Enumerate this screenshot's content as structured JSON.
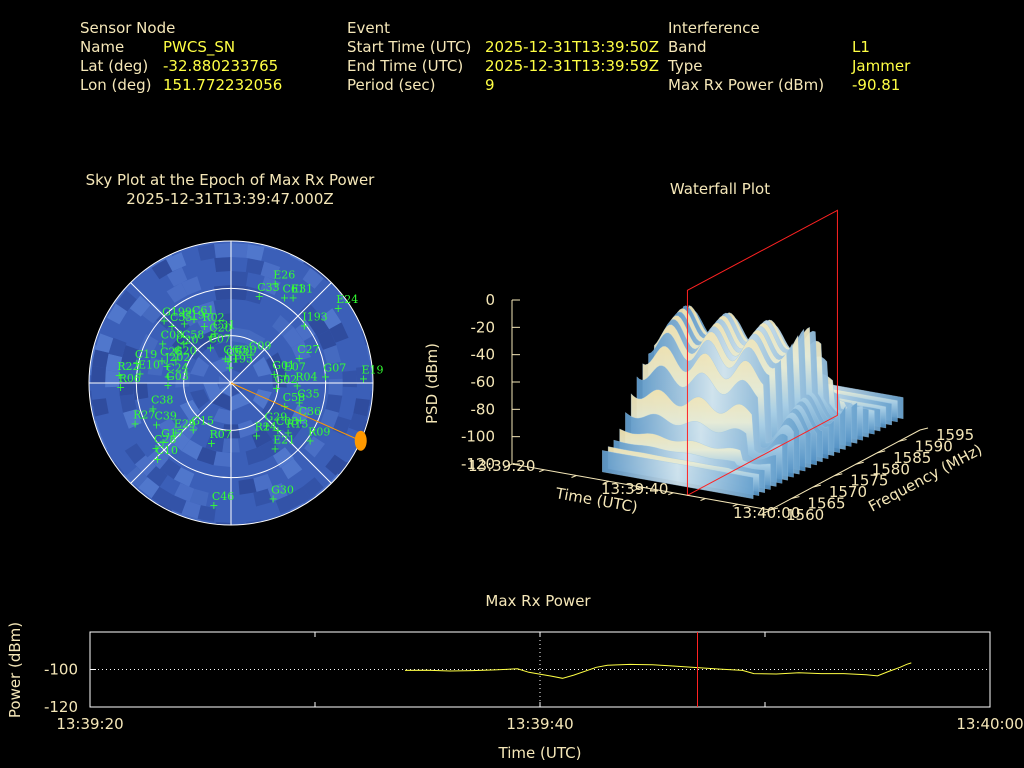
{
  "header": {
    "sensor": {
      "heading": "Sensor Node",
      "rows": [
        {
          "label": "Name",
          "value": "PWCS_SN"
        },
        {
          "label": "Lat (deg)",
          "value": "-32.880233765"
        },
        {
          "label": "Lon (deg)",
          "value": "151.772232056"
        }
      ]
    },
    "event": {
      "heading": "Event",
      "rows": [
        {
          "label": "Start Time (UTC)",
          "value": "2025-12-31T13:39:50Z"
        },
        {
          "label": "End Time (UTC)",
          "value": "2025-12-31T13:39:59Z"
        },
        {
          "label": "Period (sec)",
          "value": "9"
        }
      ]
    },
    "interference": {
      "heading": "Interference",
      "rows": [
        {
          "label": "Band",
          "value": "L1"
        },
        {
          "label": "Type",
          "value": "Jammer"
        },
        {
          "label": "Max Rx Power (dBm)",
          "value": "-90.81"
        }
      ]
    }
  },
  "colors": {
    "label": "#f5e7b8",
    "value": "#ffff44",
    "sat": "#33ff33",
    "jammer": "#ff9900",
    "marker": "#ff2222",
    "trace": "#ffff44",
    "sky": "#3b5fb8"
  },
  "chart_data": [
    {
      "type": "scatter",
      "subtype": "polar-skyplot",
      "title": "Sky Plot at the Epoch of Max Rx Power",
      "subtitle": "2025-12-31T13:39:47.000Z",
      "jammer_direction": {
        "azimuth_deg": 114,
        "elevation_deg": 0
      },
      "satellites": [
        {
          "id": "I195",
          "az": 355,
          "el": 80
        },
        {
          "id": "C30",
          "az": 12,
          "el": 74
        },
        {
          "id": "C09",
          "az": 35,
          "el": 68
        },
        {
          "id": "C53",
          "az": 352,
          "el": 76
        },
        {
          "id": "C60",
          "az": 347,
          "el": 74
        },
        {
          "id": "C07",
          "az": 330,
          "el": 64
        },
        {
          "id": "C20",
          "az": 337,
          "el": 58
        },
        {
          "id": "C31",
          "az": 342,
          "el": 57
        },
        {
          "id": "R02",
          "az": 335,
          "el": 50
        },
        {
          "id": "C58",
          "az": 310,
          "el": 51
        },
        {
          "id": "C6x",
          "az": 330,
          "el": 43
        },
        {
          "id": "C19",
          "az": 322,
          "el": 42
        },
        {
          "id": "C55",
          "az": 314,
          "el": 38
        },
        {
          "id": "G199",
          "az": 313,
          "el": 32
        },
        {
          "id": "C20b",
          "az": 303,
          "el": 50
        },
        {
          "id": "C08",
          "az": 300,
          "el": 40
        },
        {
          "id": "G20",
          "az": 293,
          "el": 52
        },
        {
          "id": "J202",
          "az": 285,
          "el": 48
        },
        {
          "id": "C26",
          "az": 288,
          "el": 44
        },
        {
          "id": "C24",
          "az": 276,
          "el": 50
        },
        {
          "id": "G03",
          "az": 268,
          "el": 50
        },
        {
          "id": "C19b",
          "az": 282,
          "el": 29
        },
        {
          "id": "E10",
          "az": 276,
          "el": 32
        },
        {
          "id": "R22",
          "az": 274,
          "el": 19
        },
        {
          "id": "R06",
          "az": 268,
          "el": 20
        },
        {
          "id": "C38",
          "az": 252,
          "el": 38
        },
        {
          "id": "R27",
          "az": 247,
          "el": 24
        },
        {
          "id": "C39",
          "az": 241,
          "el": 36
        },
        {
          "id": "G17",
          "az": 229,
          "el": 33
        },
        {
          "id": "C28",
          "az": 229,
          "el": 27
        },
        {
          "id": "C10",
          "az": 224,
          "el": 23
        },
        {
          "id": "C46",
          "az": 188,
          "el": 12
        },
        {
          "id": "E29",
          "az": 228,
          "el": 43
        },
        {
          "id": "G15",
          "az": 219,
          "el": 52
        },
        {
          "id": "R07",
          "az": 198,
          "el": 50
        },
        {
          "id": "C33",
          "az": 18,
          "el": 32
        },
        {
          "id": "C61",
          "az": 32,
          "el": 26
        },
        {
          "id": "I193",
          "az": 52,
          "el": 31
        },
        {
          "id": "E26",
          "az": 24,
          "el": 21
        },
        {
          "id": "E31",
          "az": 36,
          "el": 23
        },
        {
          "id": "C27",
          "az": 70,
          "el": 44
        },
        {
          "id": "G01",
          "az": 78,
          "el": 62
        },
        {
          "id": "E07",
          "az": 82,
          "el": 55
        },
        {
          "id": "G02",
          "az": 96,
          "el": 61
        },
        {
          "id": "R04",
          "az": 92,
          "el": 48
        },
        {
          "id": "G07",
          "az": 86,
          "el": 30
        },
        {
          "id": "E19",
          "az": 88,
          "el": 6
        },
        {
          "id": "E24",
          "az": 55,
          "el": 7
        },
        {
          "id": "C58b",
          "az": 113,
          "el": 53
        },
        {
          "id": "C35",
          "az": 106,
          "el": 45
        },
        {
          "id": "R09",
          "az": 126,
          "el": 28
        },
        {
          "id": "G30",
          "az": 160,
          "el": 12
        },
        {
          "id": "C36",
          "az": 118,
          "el": 40
        },
        {
          "id": "R13",
          "az": 131,
          "el": 42
        },
        {
          "id": "C08b",
          "az": 135,
          "el": 48
        },
        {
          "id": "G29",
          "az": 140,
          "el": 55
        },
        {
          "id": "E21",
          "az": 146,
          "el": 40
        },
        {
          "id": "R24",
          "az": 154,
          "el": 53
        }
      ],
      "sat_label_overrides": {
        "C6x": "C61",
        "C20b": "C20",
        "C19b": "C19",
        "C58b": "C58",
        "C08b": "C08"
      }
    },
    {
      "type": "area",
      "subtype": "3d-waterfall",
      "title": "Waterfall Plot",
      "xlabel": "Time (UTC)",
      "ylabel": "Frequency (MHz)",
      "zlabel": "PSD (dBm)",
      "x_ticks": [
        "13:39:20",
        "13:39:40",
        "13:40:00"
      ],
      "y_ticks": [
        1560,
        1565,
        1570,
        1575,
        1580,
        1585,
        1590,
        1595
      ],
      "z_ticks": [
        0,
        -20,
        -40,
        -60,
        -80,
        -100,
        -120
      ],
      "xlim": [
        "13:39:20",
        "13:40:00"
      ],
      "ylim": [
        1560,
        1595
      ],
      "zlim": [
        -120,
        0
      ],
      "marker_time": "13:39:47"
    },
    {
      "type": "line",
      "title": "Max Rx Power",
      "xlabel": "Time (UTC)",
      "ylabel": "Power (dBm)",
      "x_ticks": [
        "13:39:20",
        "13:39:40",
        "13:40:00"
      ],
      "y_ticks": [
        -100,
        -120
      ],
      "xlim_sec": [
        0,
        40
      ],
      "ylim": [
        -120,
        -80
      ],
      "marker_sec": 27,
      "points": [
        [
          14.0,
          -100.5
        ],
        [
          15.0,
          -100.4
        ],
        [
          16.0,
          -100.8
        ],
        [
          17.0,
          -100.6
        ],
        [
          18.0,
          -100.2
        ],
        [
          19.0,
          -99.6
        ],
        [
          19.5,
          -101.5
        ],
        [
          20.5,
          -103.5
        ],
        [
          21.0,
          -104.7
        ],
        [
          21.5,
          -103.0
        ],
        [
          22.5,
          -98.8
        ],
        [
          23.0,
          -97.7
        ],
        [
          24.0,
          -97.3
        ],
        [
          25.0,
          -97.5
        ],
        [
          26.0,
          -98.2
        ],
        [
          27.0,
          -99.0
        ],
        [
          28.0,
          -99.8
        ],
        [
          29.0,
          -100.5
        ],
        [
          29.5,
          -102.2
        ],
        [
          30.5,
          -102.4
        ],
        [
          31.5,
          -101.7
        ],
        [
          32.5,
          -102.2
        ],
        [
          33.5,
          -102.2
        ],
        [
          34.5,
          -102.8
        ],
        [
          35.0,
          -103.4
        ],
        [
          35.5,
          -101.0
        ],
        [
          36.0,
          -98.8
        ],
        [
          36.3,
          -97.2
        ],
        [
          36.5,
          -96.5
        ]
      ]
    }
  ]
}
